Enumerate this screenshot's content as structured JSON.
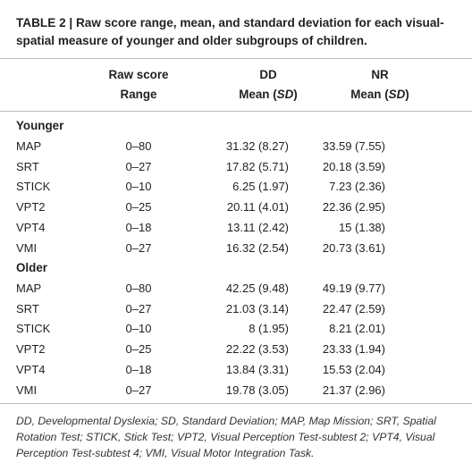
{
  "caption": "TABLE 2 | Raw score range, mean, and standard deviation for each visual-spatial measure of younger and older subgroups of children.",
  "headers": {
    "col2_line1": "Raw score",
    "col2_line2": "Range",
    "col3_line1": "DD",
    "col3_line2_prefix": "Mean (",
    "col3_line2_sd": "SD",
    "col3_line2_suffix": ")",
    "col4_line1": "NR",
    "col4_line2_prefix": "Mean (",
    "col4_line2_sd": "SD",
    "col4_line2_suffix": ")"
  },
  "groups": [
    {
      "label": "Younger",
      "rows": [
        {
          "measure": "MAP",
          "range": "0–80",
          "dd": "31.32 (8.27)",
          "nr": "33.59 (7.55)"
        },
        {
          "measure": "SRT",
          "range": "0–27",
          "dd": "17.82 (5.71)",
          "nr": "20.18 (3.59)"
        },
        {
          "measure": "STICK",
          "range": "0–10",
          "dd": "6.25 (1.97)",
          "nr": "7.23 (2.36)"
        },
        {
          "measure": "VPT2",
          "range": "0–25",
          "dd": "20.11 (4.01)",
          "nr": "22.36 (2.95)"
        },
        {
          "measure": "VPT4",
          "range": "0–18",
          "dd": "13.11 (2.42)",
          "nr": "15 (1.38)"
        },
        {
          "measure": "VMI",
          "range": "0–27",
          "dd": "16.32 (2.54)",
          "nr": "20.73 (3.61)"
        }
      ]
    },
    {
      "label": "Older",
      "rows": [
        {
          "measure": "MAP",
          "range": "0–80",
          "dd": "42.25 (9.48)",
          "nr": "49.19 (9.77)"
        },
        {
          "measure": "SRT",
          "range": "0–27",
          "dd": "21.03 (3.14)",
          "nr": "22.47 (2.59)"
        },
        {
          "measure": "STICK",
          "range": "0–10",
          "dd": "8 (1.95)",
          "nr": "8.21 (2.01)"
        },
        {
          "measure": "VPT2",
          "range": "0–25",
          "dd": "22.22 (3.53)",
          "nr": "23.33 (1.94)"
        },
        {
          "measure": "VPT4",
          "range": "0–18",
          "dd": "13.84 (3.31)",
          "nr": "15.53 (2.04)"
        },
        {
          "measure": "VMI",
          "range": "0–27",
          "dd": "19.78 (3.05)",
          "nr": "21.37 (2.96)"
        }
      ]
    }
  ],
  "footnote": "DD, Developmental Dyslexia; SD, Standard Deviation; MAP, Map Mission; SRT, Spatial Rotation Test; STICK, Stick Test; VPT2, Visual Perception Test-subtest 2; VPT4, Visual Perception Test-subtest 4; VMI, Visual Motor Integration Task."
}
